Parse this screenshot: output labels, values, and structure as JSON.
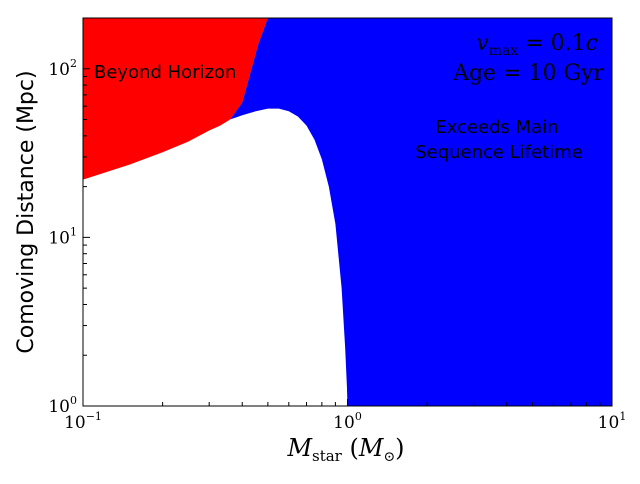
{
  "chart_data": {
    "type": "area",
    "x_scale": "log",
    "y_scale": "log",
    "xlim": [
      0.1,
      10
    ],
    "ylim": [
      1,
      200
    ],
    "xlabel": {
      "var_main": "M",
      "var_sub": "star",
      "unit_main": "M",
      "unit_sub": "⊙"
    },
    "ylabel": "Comoving Distance (Mpc)",
    "x_ticks": [
      {
        "value": 0.1,
        "base": "10",
        "exp": "−1"
      },
      {
        "value": 1,
        "base": "10",
        "exp": "0"
      },
      {
        "value": 10,
        "base": "10",
        "exp": "1"
      }
    ],
    "y_ticks": [
      {
        "value": 1,
        "base": "10",
        "exp": "0"
      },
      {
        "value": 10,
        "base": "10",
        "exp": "1"
      },
      {
        "value": 100,
        "base": "10",
        "exp": "2"
      }
    ],
    "annotations": {
      "vmax": {
        "var": "v",
        "sub": "max",
        "rest": " = 0.1",
        "c": "c"
      },
      "age": {
        "label": "Age",
        "rest": " = 10 Gyr"
      }
    },
    "regions": [
      {
        "name": "Beyond Horizon",
        "label": "Beyond Horizon",
        "color": "#ff0000",
        "boundary_x": [
          0.1,
          0.15,
          0.2,
          0.25,
          0.3,
          0.33,
          0.36,
          0.4,
          0.43,
          0.46,
          0.5
        ],
        "boundary_y": [
          22,
          27,
          32,
          37,
          43,
          46,
          50,
          63,
          95,
          140,
          200
        ]
      },
      {
        "name": "Exceeds Main Sequence Lifetime",
        "label_lines": [
          "Exceeds Main",
          "Sequence Lifetime"
        ],
        "color": "#0000ff",
        "boundary_x": [
          0.36,
          0.4,
          0.45,
          0.5,
          0.55,
          0.6,
          0.65,
          0.7,
          0.75,
          0.8,
          0.85,
          0.9,
          0.95,
          0.98,
          0.995,
          1.0
        ],
        "boundary_y": [
          50,
          53,
          56,
          58,
          58,
          56,
          52,
          46,
          38,
          29,
          20,
          12,
          5,
          2.2,
          1.3,
          1.0
        ]
      }
    ],
    "grid": false,
    "legend": "none"
  }
}
